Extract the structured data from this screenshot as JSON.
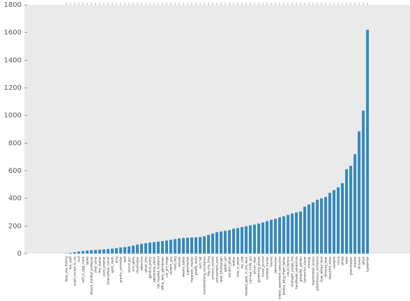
{
  "chart_data": {
    "type": "bar",
    "categories": [
      "deep_sea_fishing",
      "fire_staff",
      "pupil_turned_to_ice",
      "bull",
      "self_in_egg_mask",
      "spoke",
      "absent_minded_professor",
      "shell_silver",
      "fire_starter",
      "yard_prophet",
      "lovecraftian_horror",
      "spirit_moth",
      "plug",
      "gravity_controller",
      "wall",
      "sound_gun",
      "evil_genie",
      "clockmaker",
      "detective",
      "ghost_ship",
      "general_pretty",
      "apprentice_monk",
      "hot_headed_husband",
      "office_lady_gentleman",
      "cat_girl_mage",
      "student_guy",
      "mad_dog",
      "amulet",
      "weekly_baker",
      "supermarket",
      "magnetic_master",
      "giraffe_mom",
      "jack_hat",
      "overwhelming_resistance",
      "big_city_king",
      "primary_school",
      "amusement_park",
      "laser_photograph",
      "goblin_girl",
      "ancient_ghost",
      "walker",
      "hole_in_water",
      "sky_cow",
      "headed_geek_in_the_west",
      "carnival_knife_girl",
      "prison_door",
      "gardening_planet",
      "travel_journal",
      "rainbow_hunter",
      "marine",
      "swordsman",
      "empty_apartment_executive",
      "broken_wing_flight_father",
      "cloud_factory",
      "midnight_jungle_fire",
      "handmade_adventure",
      "gangster_garden",
      "harmonica_slayer",
      "comedy",
      "heartbroken_lovers",
      "adventurous_orchestra",
      "slow_witted_hero",
      "drinking_bear",
      "beautiful_noise",
      "vampire",
      "circus",
      "pirate",
      "robot",
      "grasshopper",
      "shooter",
      "dinosaur",
      "ghost",
      "typewriter"
    ],
    "values": [
      2,
      5,
      10,
      15,
      18,
      22,
      25,
      27,
      28,
      30,
      33,
      36,
      40,
      45,
      48,
      52,
      58,
      65,
      70,
      75,
      80,
      83,
      87,
      90,
      95,
      100,
      105,
      110,
      113,
      115,
      117,
      118,
      120,
      125,
      135,
      145,
      155,
      160,
      165,
      170,
      180,
      185,
      192,
      198,
      205,
      210,
      218,
      225,
      235,
      245,
      252,
      262,
      270,
      280,
      290,
      298,
      305,
      340,
      355,
      370,
      390,
      400,
      410,
      440,
      460,
      480,
      510,
      610,
      635,
      720,
      885,
      1035,
      1620
    ],
    "color": "#348abd",
    "ylim": [
      0,
      1800
    ],
    "yticks": [
      0,
      200,
      400,
      600,
      800,
      1000,
      1200,
      1400,
      1600,
      1800
    ]
  }
}
